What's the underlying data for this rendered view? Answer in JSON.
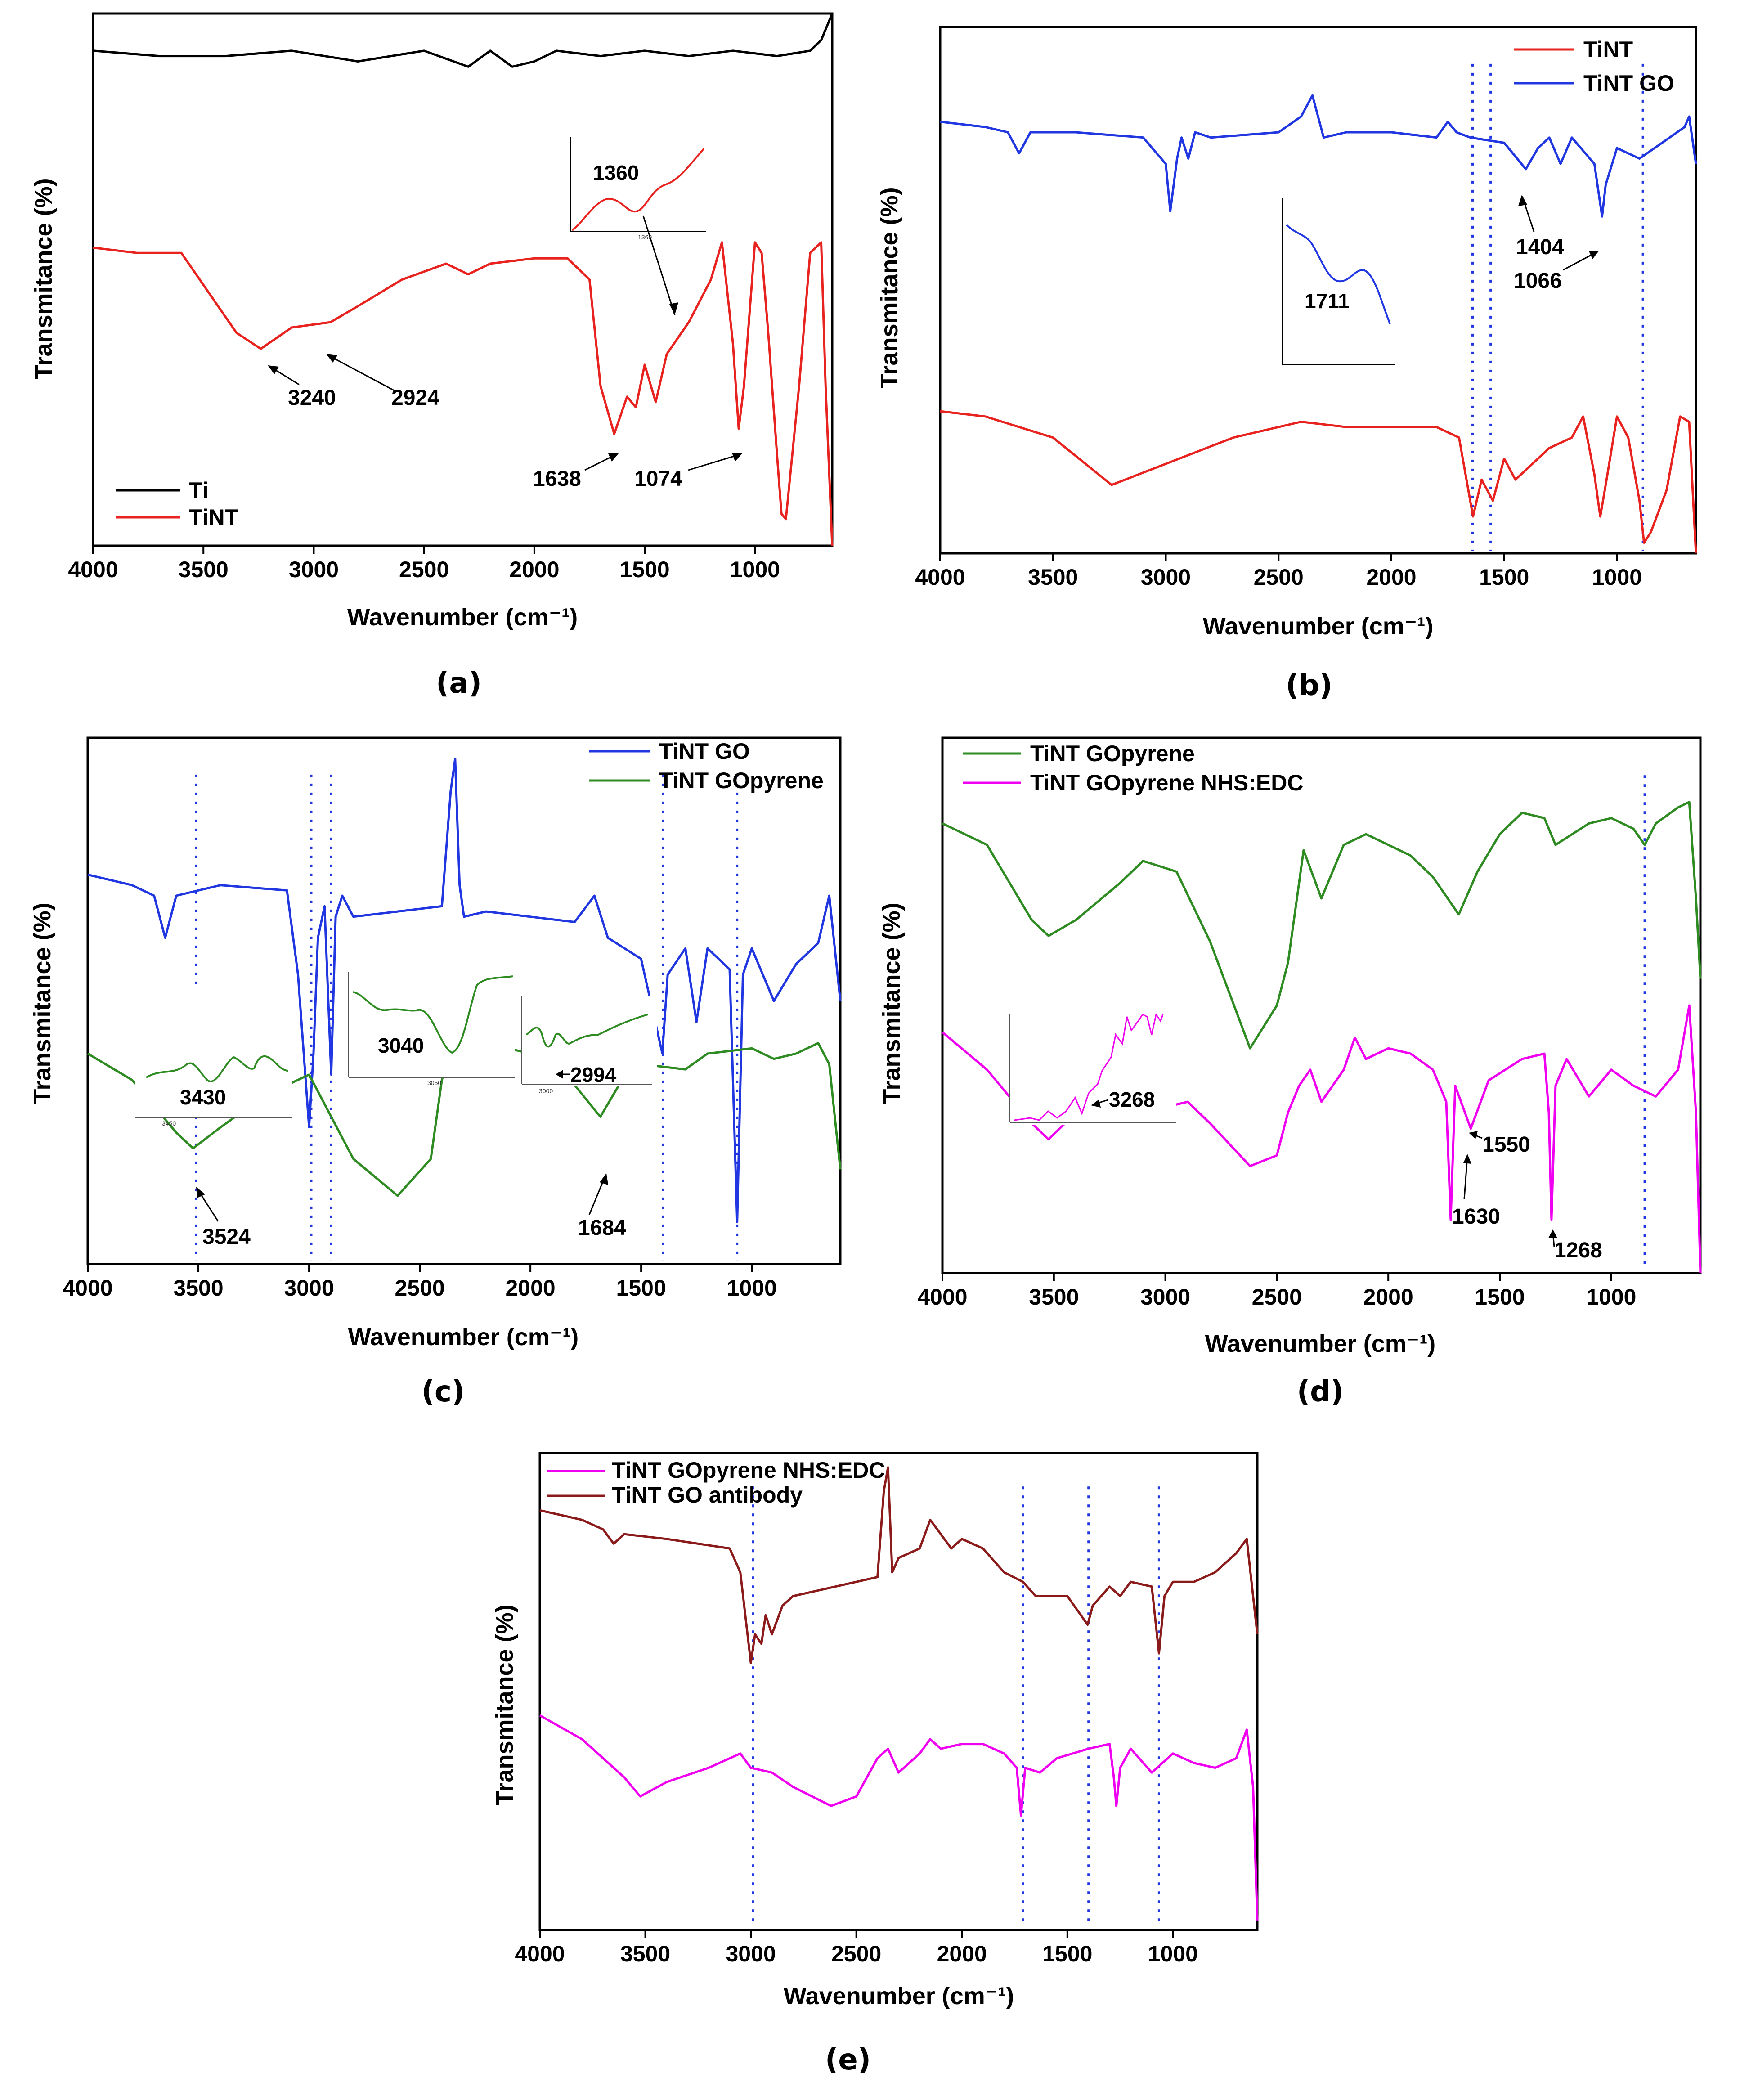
{
  "figure_title": "",
  "chart_data": [
    {
      "panel_label": "(a)",
      "type": "line",
      "xlabel": "Wavenumber (cm⁻¹)",
      "ylabel": "Transmitance (%)",
      "xlim": [
        4000,
        650
      ],
      "xticks": [
        4000,
        3500,
        3000,
        2500,
        2000,
        1500,
        1000
      ],
      "series": [
        {
          "name": "Ti",
          "color": "#000000",
          "x": [
            4000,
            3700,
            3400,
            3100,
            2800,
            2500,
            2300,
            2200,
            2100,
            2000,
            1900,
            1700,
            1500,
            1300,
            1100,
            900,
            750,
            700,
            650
          ],
          "y": [
            0.93,
            0.92,
            0.92,
            0.93,
            0.91,
            0.93,
            0.9,
            0.93,
            0.9,
            0.91,
            0.93,
            0.92,
            0.93,
            0.92,
            0.93,
            0.92,
            0.93,
            0.95,
            1.0
          ]
        },
        {
          "name": "TiNT",
          "color": "#e8231f",
          "x": [
            4000,
            3800,
            3600,
            3450,
            3350,
            3240,
            3100,
            2924,
            2800,
            2600,
            2400,
            2300,
            2200,
            2000,
            1850,
            1750,
            1700,
            1638,
            1580,
            1540,
            1500,
            1450,
            1400,
            1300,
            1200,
            1150,
            1100,
            1074,
            1050,
            1000,
            970,
            940,
            900,
            880,
            860,
            800,
            750,
            700,
            680,
            650
          ],
          "y": [
            0.56,
            0.55,
            0.55,
            0.46,
            0.4,
            0.37,
            0.41,
            0.42,
            0.45,
            0.5,
            0.53,
            0.51,
            0.53,
            0.54,
            0.54,
            0.5,
            0.3,
            0.21,
            0.28,
            0.26,
            0.34,
            0.27,
            0.36,
            0.42,
            0.5,
            0.57,
            0.38,
            0.22,
            0.3,
            0.57,
            0.55,
            0.4,
            0.17,
            0.06,
            0.05,
            0.3,
            0.55,
            0.57,
            0.3,
            0.0
          ]
        }
      ],
      "annotations": [
        "3240",
        "2924",
        "1638",
        "1074"
      ],
      "inset": {
        "label": "1360",
        "tick": "1360"
      },
      "legend": [
        "Ti",
        "TiNT"
      ],
      "legend_position": "bottom-left"
    },
    {
      "panel_label": "(b)",
      "type": "line",
      "xlabel": "Wavenumber (cm⁻¹)",
      "ylabel": "Transmitance (%)",
      "xlim": [
        4000,
        650
      ],
      "xticks": [
        4000,
        3500,
        3000,
        2500,
        2000,
        1500,
        1000
      ],
      "series": [
        {
          "name": "TiNT",
          "color": "#e8231f",
          "x": [
            4000,
            3800,
            3500,
            3240,
            3000,
            2700,
            2400,
            2200,
            2000,
            1800,
            1700,
            1638,
            1600,
            1550,
            1500,
            1450,
            1300,
            1200,
            1150,
            1100,
            1074,
            1050,
            1000,
            950,
            900,
            880,
            850,
            780,
            720,
            680,
            650
          ],
          "y": [
            0.27,
            0.26,
            0.22,
            0.13,
            0.17,
            0.22,
            0.25,
            0.24,
            0.24,
            0.24,
            0.22,
            0.07,
            0.14,
            0.1,
            0.18,
            0.14,
            0.2,
            0.22,
            0.26,
            0.15,
            0.07,
            0.13,
            0.26,
            0.22,
            0.1,
            0.02,
            0.04,
            0.12,
            0.26,
            0.25,
            0.0
          ]
        },
        {
          "name": "TiNT GO",
          "color": "#2036e0",
          "x": [
            4000,
            3800,
            3700,
            3650,
            3600,
            3400,
            3100,
            3000,
            2980,
            2950,
            2930,
            2900,
            2870,
            2800,
            2500,
            2400,
            2350,
            2300,
            2200,
            2000,
            1800,
            1750,
            1711,
            1650,
            1500,
            1404,
            1350,
            1300,
            1250,
            1200,
            1100,
            1066,
            1050,
            1000,
            900,
            800,
            700,
            680,
            650
          ],
          "y": [
            0.82,
            0.81,
            0.8,
            0.76,
            0.8,
            0.8,
            0.79,
            0.74,
            0.65,
            0.75,
            0.79,
            0.75,
            0.8,
            0.79,
            0.8,
            0.83,
            0.87,
            0.79,
            0.8,
            0.8,
            0.79,
            0.82,
            0.8,
            0.79,
            0.78,
            0.73,
            0.77,
            0.79,
            0.74,
            0.79,
            0.74,
            0.64,
            0.7,
            0.77,
            0.75,
            0.78,
            0.81,
            0.83,
            0.74
          ]
        }
      ],
      "annotations": [
        "1404",
        "1066"
      ],
      "inset": {
        "label": "1711"
      },
      "reference_lines": [
        1640,
        1560,
        885
      ],
      "legend": [
        "TiNT",
        "TiNT GO"
      ],
      "legend_position": "top-right"
    },
    {
      "panel_label": "(c)",
      "type": "line",
      "xlabel": "Wavenumber (cm⁻¹)",
      "ylabel": "Transmitance (%)",
      "xlim": [
        4000,
        600
      ],
      "xticks": [
        4000,
        3500,
        3000,
        2500,
        2000,
        1500,
        1000
      ],
      "series": [
        {
          "name": "TiNT GO",
          "color": "#2036e0",
          "x": [
            4000,
            3800,
            3700,
            3650,
            3600,
            3400,
            3100,
            3050,
            3000,
            2980,
            2960,
            2930,
            2900,
            2880,
            2850,
            2800,
            2600,
            2400,
            2360,
            2340,
            2320,
            2300,
            2200,
            2000,
            1800,
            1711,
            1650,
            1500,
            1404,
            1380,
            1300,
            1250,
            1200,
            1100,
            1066,
            1040,
            1000,
            900,
            800,
            700,
            650,
            600
          ],
          "y": [
            0.74,
            0.72,
            0.7,
            0.62,
            0.7,
            0.72,
            0.71,
            0.55,
            0.26,
            0.4,
            0.62,
            0.68,
            0.36,
            0.66,
            0.7,
            0.66,
            0.67,
            0.68,
            0.9,
            0.96,
            0.72,
            0.66,
            0.67,
            0.66,
            0.65,
            0.7,
            0.62,
            0.58,
            0.4,
            0.55,
            0.6,
            0.46,
            0.6,
            0.56,
            0.08,
            0.55,
            0.6,
            0.5,
            0.57,
            0.61,
            0.7,
            0.5
          ]
        },
        {
          "name": "TiNT GOpyrene",
          "color": "#2e8b22",
          "x": [
            4000,
            3800,
            3600,
            3524,
            3400,
            3200,
            3000,
            2800,
            2600,
            2450,
            2400,
            2350,
            2300,
            2200,
            2000,
            1800,
            1684,
            1600,
            1500,
            1300,
            1200,
            1000,
            900,
            800,
            700,
            650,
            600
          ],
          "y": [
            0.4,
            0.35,
            0.25,
            0.22,
            0.26,
            0.32,
            0.36,
            0.2,
            0.13,
            0.2,
            0.35,
            0.42,
            0.36,
            0.42,
            0.4,
            0.34,
            0.28,
            0.34,
            0.38,
            0.37,
            0.4,
            0.41,
            0.39,
            0.4,
            0.42,
            0.38,
            0.18
          ]
        }
      ],
      "annotations": [
        "3524",
        "1684"
      ],
      "insets": [
        {
          "label": "3430",
          "tick": "3450"
        },
        {
          "label": "3040",
          "tick": "3050"
        },
        {
          "label": "2994",
          "tick": "3000"
        }
      ],
      "reference_lines": [
        3510,
        2990,
        2900,
        1400,
        1066
      ],
      "legend": [
        "TiNT GO",
        "TiNT GOpyrene"
      ],
      "legend_position": "top-right"
    },
    {
      "panel_label": "(d)",
      "type": "line",
      "xlabel": "Wavenumber (cm⁻¹)",
      "ylabel": "Transmitance (%)",
      "xlim": [
        4000,
        600
      ],
      "xticks": [
        4000,
        3500,
        3000,
        2500,
        2000,
        1500,
        1000
      ],
      "series": [
        {
          "name": "TiNT GOpyrene",
          "color": "#2e8b22",
          "x": [
            4000,
            3800,
            3600,
            3524,
            3400,
            3200,
            3100,
            2950,
            2800,
            2620,
            2500,
            2450,
            2380,
            2300,
            2200,
            2100,
            2000,
            1900,
            1800,
            1684,
            1600,
            1500,
            1400,
            1300,
            1250,
            1100,
            1000,
            900,
            850,
            800,
            700,
            650,
            620,
            600
          ],
          "y": [
            0.84,
            0.8,
            0.66,
            0.63,
            0.66,
            0.73,
            0.77,
            0.75,
            0.62,
            0.42,
            0.5,
            0.58,
            0.79,
            0.7,
            0.8,
            0.82,
            0.8,
            0.78,
            0.74,
            0.67,
            0.75,
            0.82,
            0.86,
            0.85,
            0.8,
            0.84,
            0.85,
            0.83,
            0.8,
            0.84,
            0.87,
            0.88,
            0.7,
            0.55
          ]
        },
        {
          "name": "TiNT GOpyrene NHS:EDC",
          "color": "#f000f0",
          "x": [
            4000,
            3800,
            3600,
            3524,
            3400,
            3200,
            3050,
            3000,
            2900,
            2800,
            2620,
            2500,
            2450,
            2400,
            2350,
            2300,
            2200,
            2150,
            2100,
            2000,
            1900,
            1800,
            1740,
            1720,
            1700,
            1630,
            1550,
            1400,
            1300,
            1280,
            1268,
            1250,
            1200,
            1100,
            1000,
            900,
            800,
            700,
            650,
            620,
            600
          ],
          "y": [
            0.45,
            0.38,
            0.28,
            0.25,
            0.3,
            0.32,
            0.4,
            0.31,
            0.32,
            0.28,
            0.2,
            0.22,
            0.3,
            0.35,
            0.38,
            0.32,
            0.38,
            0.44,
            0.4,
            0.42,
            0.41,
            0.38,
            0.32,
            0.1,
            0.35,
            0.27,
            0.36,
            0.4,
            0.41,
            0.3,
            0.1,
            0.35,
            0.4,
            0.33,
            0.38,
            0.35,
            0.33,
            0.38,
            0.5,
            0.3,
            0.0
          ]
        }
      ],
      "annotations": [
        "1550",
        "1630",
        "1268"
      ],
      "inset": {
        "label": "3268"
      },
      "reference_lines": [
        850
      ],
      "legend": [
        "TiNT GOpyrene",
        "TiNT GOpyrene NHS:EDC"
      ],
      "legend_position": "top-left"
    },
    {
      "panel_label": "(e)",
      "type": "line",
      "xlabel": "Wavenumber (cm⁻¹)",
      "ylabel": "Transmitance (%)",
      "xlim": [
        4000,
        600
      ],
      "xticks": [
        4000,
        3500,
        3000,
        2500,
        2000,
        1500,
        1000
      ],
      "series": [
        {
          "name": "TiNT GOpyrene NHS:EDC",
          "color": "#f000f0",
          "x": [
            4000,
            3800,
            3600,
            3524,
            3400,
            3200,
            3050,
            3000,
            2900,
            2800,
            2620,
            2500,
            2450,
            2400,
            2350,
            2300,
            2200,
            2150,
            2100,
            2000,
            1900,
            1800,
            1740,
            1720,
            1700,
            1630,
            1550,
            1400,
            1300,
            1280,
            1268,
            1250,
            1200,
            1100,
            1000,
            900,
            800,
            700,
            650,
            620,
            600
          ],
          "y": [
            0.45,
            0.4,
            0.32,
            0.28,
            0.31,
            0.34,
            0.37,
            0.34,
            0.33,
            0.3,
            0.26,
            0.28,
            0.32,
            0.36,
            0.38,
            0.33,
            0.37,
            0.4,
            0.38,
            0.39,
            0.39,
            0.37,
            0.34,
            0.24,
            0.34,
            0.33,
            0.36,
            0.38,
            0.39,
            0.32,
            0.26,
            0.34,
            0.38,
            0.33,
            0.37,
            0.35,
            0.34,
            0.36,
            0.42,
            0.3,
            0.02
          ]
        },
        {
          "name": "TiNT GO antibody",
          "color": "#8b1a1a",
          "x": [
            4000,
            3800,
            3700,
            3650,
            3600,
            3400,
            3100,
            3050,
            3000,
            2980,
            2950,
            2930,
            2900,
            2850,
            2800,
            2600,
            2400,
            2370,
            2350,
            2330,
            2300,
            2200,
            2150,
            2050,
            2000,
            1900,
            1800,
            1711,
            1650,
            1500,
            1404,
            1380,
            1300,
            1250,
            1200,
            1100,
            1066,
            1040,
            1000,
            900,
            800,
            700,
            650,
            620,
            600
          ],
          "y": [
            0.88,
            0.86,
            0.84,
            0.81,
            0.83,
            0.82,
            0.8,
            0.75,
            0.56,
            0.62,
            0.6,
            0.66,
            0.62,
            0.68,
            0.7,
            0.72,
            0.74,
            0.92,
            0.97,
            0.75,
            0.78,
            0.8,
            0.86,
            0.8,
            0.82,
            0.8,
            0.75,
            0.73,
            0.7,
            0.7,
            0.64,
            0.68,
            0.72,
            0.7,
            0.73,
            0.72,
            0.58,
            0.7,
            0.73,
            0.73,
            0.75,
            0.79,
            0.82,
            0.7,
            0.62
          ]
        }
      ],
      "reference_lines": [
        2990,
        1711,
        1400,
        1066
      ],
      "legend": [
        "TiNT GOpyrene NHS:EDC",
        "TiNT GO antibody"
      ],
      "legend_position": "top-left"
    }
  ]
}
